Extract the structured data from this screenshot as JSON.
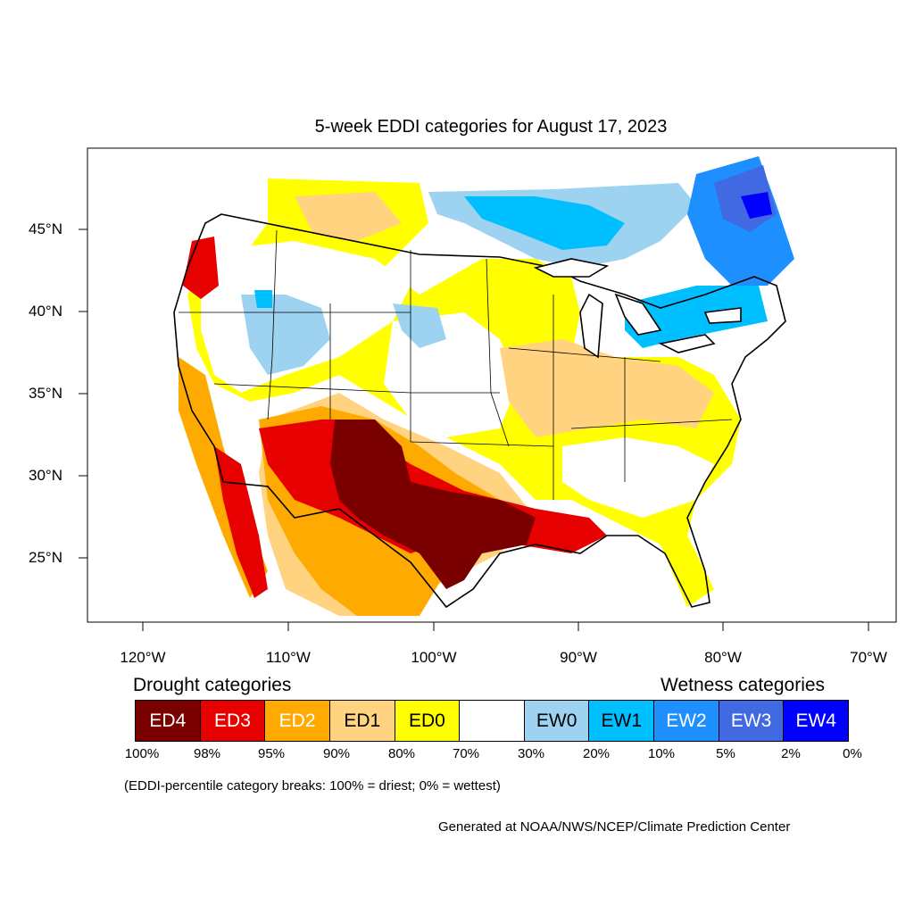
{
  "title": "5-week EDDI categories for August 17, 2023",
  "axes": {
    "lat_labels": [
      "45°N",
      "40°N",
      "35°N",
      "30°N",
      "25°N"
    ],
    "lon_labels": [
      "120°W",
      "110°W",
      "100°W",
      "90°W",
      "80°W",
      "70°W"
    ]
  },
  "legend": {
    "drought_heading": "Drought categories",
    "wetness_heading": "Wetness categories",
    "categories": [
      {
        "label": "ED4",
        "color": "#7a0000",
        "text_color": "#ffffff"
      },
      {
        "label": "ED3",
        "color": "#e60000",
        "text_color": "#ffffff"
      },
      {
        "label": "ED2",
        "color": "#ffaa00",
        "text_color": "#ffffff"
      },
      {
        "label": "ED1",
        "color": "#ffd37f",
        "text_color": "#000000"
      },
      {
        "label": "ED0",
        "color": "#ffff00",
        "text_color": "#000000"
      },
      {
        "label": "",
        "color": "#ffffff",
        "text_color": "#000000"
      },
      {
        "label": "EW0",
        "color": "#9dd3f0",
        "text_color": "#000000"
      },
      {
        "label": "EW1",
        "color": "#00bfff",
        "text_color": "#000000"
      },
      {
        "label": "EW2",
        "color": "#1e8fff",
        "text_color": "#ffffff"
      },
      {
        "label": "EW3",
        "color": "#4169e1",
        "text_color": "#ffffff"
      },
      {
        "label": "EW4",
        "color": "#0000ff",
        "text_color": "#ffffff"
      }
    ],
    "breaks": [
      "100%",
      "98%",
      "95%",
      "90%",
      "80%",
      "70%",
      "30%",
      "20%",
      "10%",
      "5%",
      "2%",
      "0%"
    ]
  },
  "note": "(EDDI-percentile category breaks: 100% = driest; 0% = wettest)",
  "credit": "Generated at NOAA/NWS/NCEP/Climate Prediction Center"
}
